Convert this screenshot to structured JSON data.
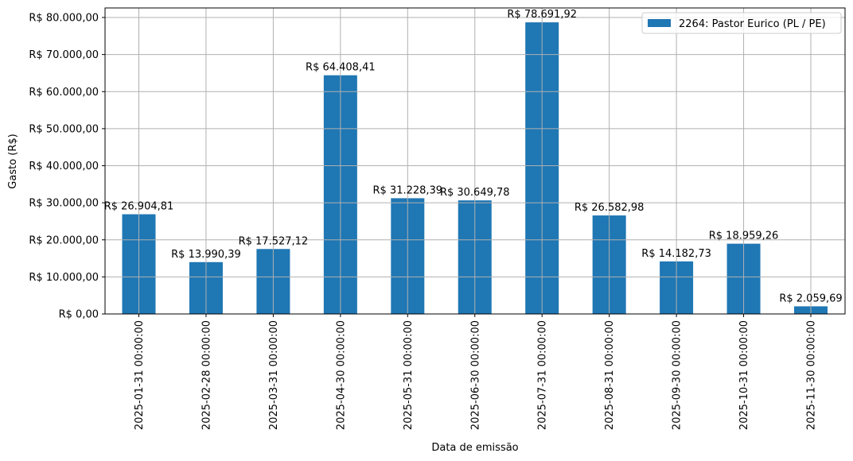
{
  "chart_data": {
    "type": "bar",
    "title": "",
    "xlabel": "Data de emissão",
    "ylabel": "Gasto (R$)",
    "ylim": [
      0,
      80000
    ],
    "grid": true,
    "legend_position": "upper right",
    "bar_color": "#1f77b4",
    "categories": [
      "2025-01-31 00:00:00",
      "2025-02-28 00:00:00",
      "2025-03-31 00:00:00",
      "2025-04-30 00:00:00",
      "2025-05-31 00:00:00",
      "2025-06-30 00:00:00",
      "2025-07-31 00:00:00",
      "2025-08-31 00:00:00",
      "2025-09-30 00:00:00",
      "2025-10-31 00:00:00",
      "2025-11-30 00:00:00"
    ],
    "series": [
      {
        "name": "2264: Pastor Eurico (PL / PE)",
        "values": [
          26904.81,
          13990.39,
          17527.12,
          64408.41,
          31228.39,
          30649.78,
          78691.92,
          26582.98,
          14182.73,
          18959.26,
          2059.69
        ]
      }
    ],
    "data_labels": [
      "R$ 26.904,81",
      "R$ 13.990,39",
      "R$ 17.527,12",
      "R$ 64.408,41",
      "R$ 31.228,39",
      "R$ 30.649,78",
      "R$ 78.691,92",
      "R$ 26.582,98",
      "R$ 14.182,73",
      "R$ 18.959,26",
      "R$ 2.059,69"
    ],
    "yticks": [
      0,
      10000,
      20000,
      30000,
      40000,
      50000,
      60000,
      70000,
      80000
    ],
    "ytick_labels": [
      "R$ 0,00",
      "R$ 10.000,00",
      "R$ 20.000,00",
      "R$ 30.000,00",
      "R$ 40.000,00",
      "R$ 50.000,00",
      "R$ 60.000,00",
      "R$ 70.000,00",
      "R$ 80.000,00"
    ]
  }
}
